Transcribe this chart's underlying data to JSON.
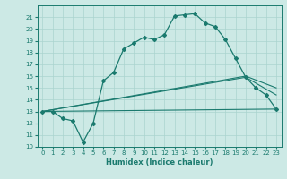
{
  "xlabel": "Humidex (Indice chaleur)",
  "xlim": [
    -0.5,
    23.5
  ],
  "ylim": [
    10,
    22
  ],
  "yticks": [
    10,
    11,
    12,
    13,
    14,
    15,
    16,
    17,
    18,
    19,
    20,
    21
  ],
  "xticks": [
    0,
    1,
    2,
    3,
    4,
    5,
    6,
    7,
    8,
    9,
    10,
    11,
    12,
    13,
    14,
    15,
    16,
    17,
    18,
    19,
    20,
    21,
    22,
    23
  ],
  "background_color": "#cce9e5",
  "grid_color": "#aad4cf",
  "line_color": "#1a7a6e",
  "line1_x": [
    0,
    1,
    2,
    3,
    4,
    5,
    6,
    7,
    8,
    9,
    10,
    11,
    12,
    13,
    14,
    15,
    16,
    17,
    18,
    19,
    20,
    21,
    22,
    23
  ],
  "line1_y": [
    13,
    13,
    12.4,
    12.2,
    10.4,
    12.0,
    15.6,
    16.3,
    18.3,
    18.8,
    19.3,
    19.1,
    19.5,
    21.1,
    21.2,
    21.3,
    20.5,
    20.2,
    19.1,
    17.5,
    15.9,
    15.0,
    14.4,
    13.2
  ],
  "line2_x": [
    0,
    23
  ],
  "line2_y": [
    13,
    13.2
  ],
  "line3_x": [
    0,
    20,
    23
  ],
  "line3_y": [
    13,
    15.9,
    14.4
  ],
  "line4_x": [
    0,
    20,
    23
  ],
  "line4_y": [
    13,
    16.0,
    15.0
  ]
}
